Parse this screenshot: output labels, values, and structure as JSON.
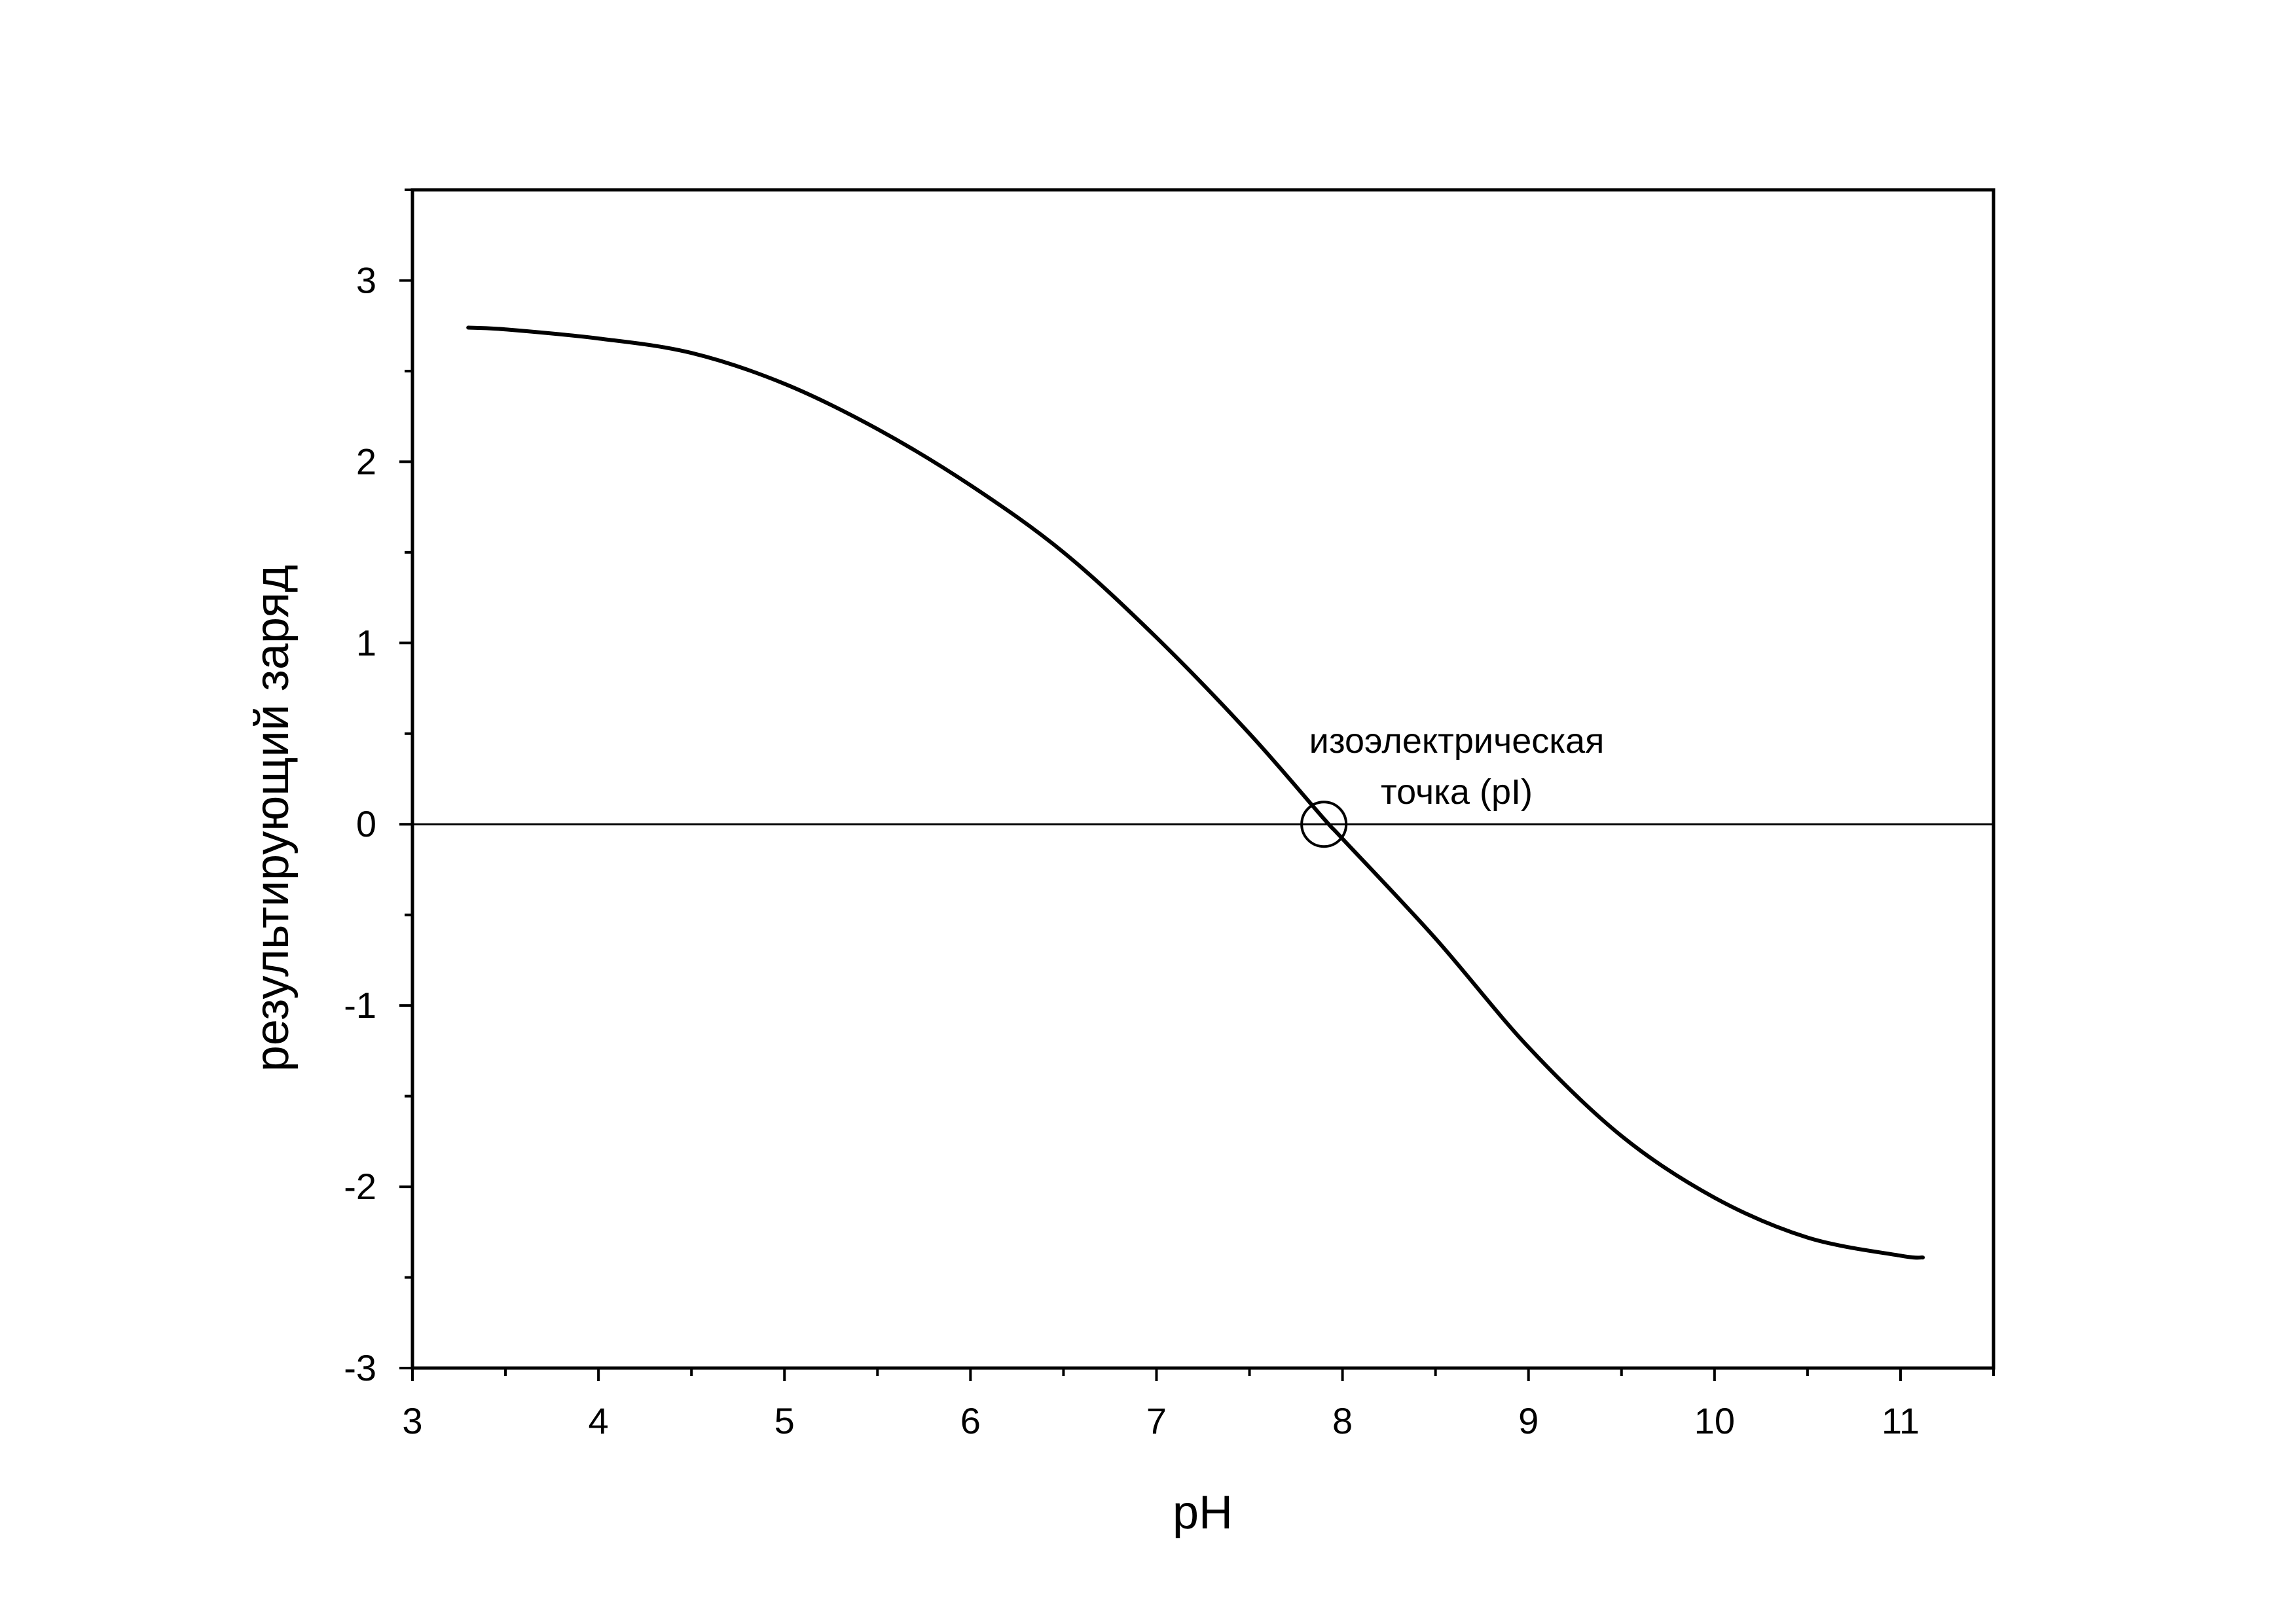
{
  "chart_data": {
    "type": "line",
    "title": "",
    "xlabel": "pH",
    "ylabel": "результирующий заряд",
    "xlim": [
      3,
      11.5
    ],
    "ylim": [
      -3,
      3.5
    ],
    "xticks": [
      3,
      4,
      5,
      6,
      7,
      8,
      9,
      10,
      11
    ],
    "yticks": [
      -3,
      -2,
      -1,
      0,
      1,
      2,
      3
    ],
    "x_minor_step": 0.5,
    "y_minor_step": 0.5,
    "grid": false,
    "legend": "none",
    "reference_line": {
      "y": 0
    },
    "series": [
      {
        "color": "#000000",
        "points": [
          [
            3.3,
            2.74
          ],
          [
            3.5,
            2.73
          ],
          [
            4.0,
            2.68
          ],
          [
            4.5,
            2.6
          ],
          [
            5.0,
            2.43
          ],
          [
            5.5,
            2.18
          ],
          [
            6.0,
            1.87
          ],
          [
            6.5,
            1.5
          ],
          [
            7.0,
            1.03
          ],
          [
            7.5,
            0.5
          ],
          [
            7.9,
            0.03
          ],
          [
            8.0,
            -0.08
          ],
          [
            8.5,
            -0.63
          ],
          [
            9.0,
            -1.23
          ],
          [
            9.5,
            -1.72
          ],
          [
            10.0,
            -2.06
          ],
          [
            10.5,
            -2.28
          ],
          [
            11.0,
            -2.38
          ],
          [
            11.12,
            -2.39
          ]
        ]
      }
    ],
    "annotations": [
      {
        "lines": [
          "изоэлектрическая",
          "точка (pI)"
        ],
        "x": 7.9,
        "y": 0,
        "marker": "circle"
      }
    ]
  }
}
